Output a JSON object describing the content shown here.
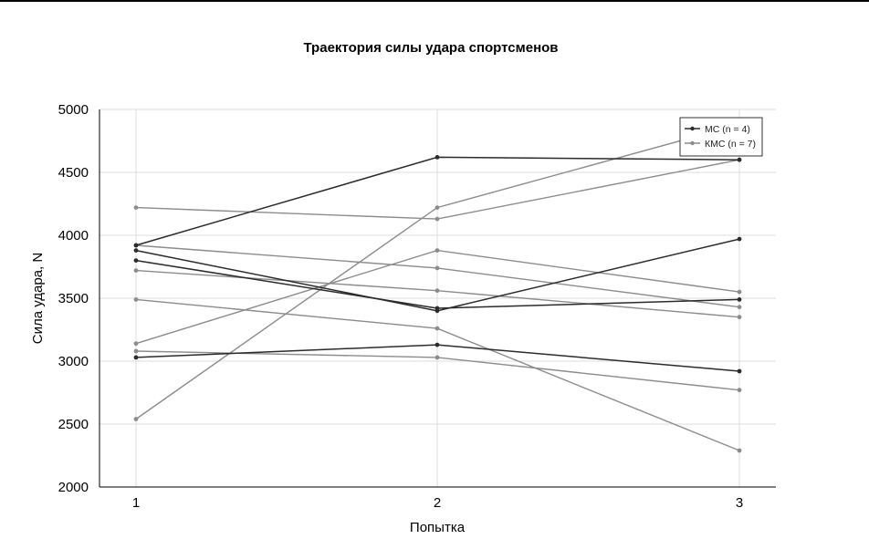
{
  "chart_data": {
    "type": "line",
    "title": "Траектория силы удара спортсменов",
    "xlabel": "Попытка",
    "ylabel": "Сила удара, N",
    "x": [
      1,
      2,
      3
    ],
    "x_tick_labels": [
      "1",
      "2",
      "3"
    ],
    "ylim": [
      2000,
      5000
    ],
    "y_ticks": [
      2000,
      2500,
      3000,
      3500,
      4000,
      4500,
      5000
    ],
    "grid": true,
    "legend_position": "top-right",
    "groups": [
      {
        "label": "МС (n = 4)",
        "color": "#2b2b2b"
      },
      {
        "label": "КМС (n = 7)",
        "color": "#8c8c8c"
      }
    ],
    "series": [
      {
        "group": 0,
        "values": [
          3920,
          4620,
          4600
        ]
      },
      {
        "group": 0,
        "values": [
          3880,
          3400,
          3970
        ]
      },
      {
        "group": 0,
        "values": [
          3800,
          3420,
          3490
        ]
      },
      {
        "group": 0,
        "values": [
          3030,
          3130,
          2920
        ]
      },
      {
        "group": 1,
        "values": [
          4220,
          4130,
          4600
        ]
      },
      {
        "group": 1,
        "values": [
          3920,
          3740,
          3430
        ]
      },
      {
        "group": 1,
        "values": [
          3720,
          3560,
          3350
        ]
      },
      {
        "group": 1,
        "values": [
          3490,
          3260,
          2290
        ]
      },
      {
        "group": 1,
        "values": [
          3140,
          3880,
          3550
        ]
      },
      {
        "group": 1,
        "values": [
          3080,
          3030,
          2770
        ]
      },
      {
        "group": 1,
        "values": [
          2540,
          4220,
          4880
        ]
      }
    ]
  }
}
